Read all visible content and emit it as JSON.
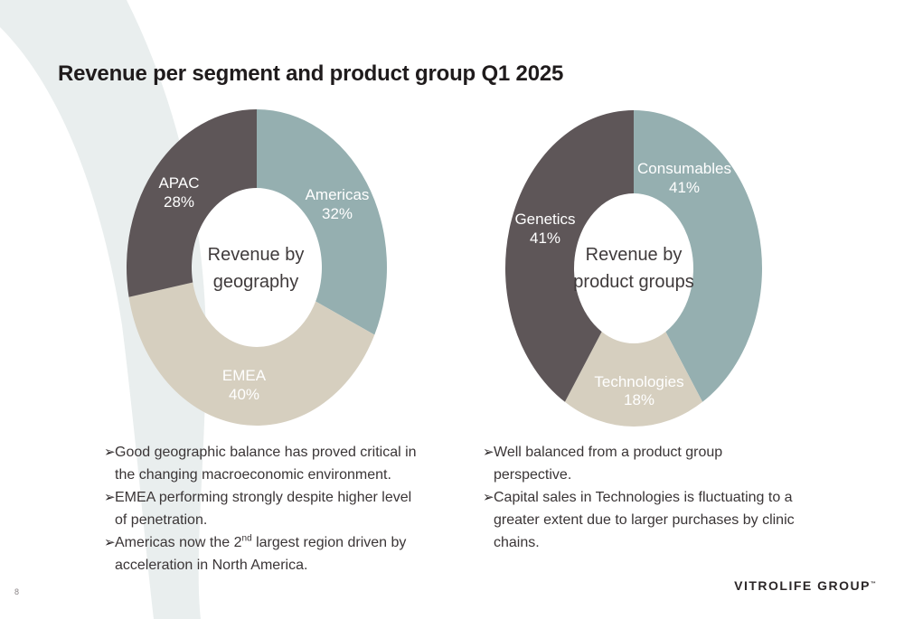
{
  "page": {
    "title": "Revenue per segment and product group Q1 2025",
    "page_number": "8",
    "brand": "VITROLIFE GROUP",
    "brand_mark": "™"
  },
  "colors": {
    "slate": "#95afb0",
    "beige": "#d6cfbf",
    "charcoal": "#5e5658",
    "label_text": "#ffffff",
    "swoosh": "#e9eeee"
  },
  "charts": {
    "geography": {
      "center_line1": "Revenue by",
      "center_line2": "geography",
      "labels": [
        {
          "name": "Americas",
          "pct": "32%"
        },
        {
          "name": "EMEA",
          "pct": "40%"
        },
        {
          "name": "APAC",
          "pct": "28%"
        }
      ]
    },
    "products": {
      "center_line1": "Revenue by",
      "center_line2": "product groups",
      "labels": [
        {
          "name": "Consumables",
          "pct": "41%"
        },
        {
          "name": "Technologies",
          "pct": "18%"
        },
        {
          "name": "Genetics",
          "pct": "41%"
        }
      ]
    }
  },
  "chart_data": [
    {
      "type": "pie",
      "categories": [
        "Americas",
        "EMEA",
        "APAC"
      ],
      "values": [
        32,
        40,
        28
      ],
      "colors": [
        "#95afb0",
        "#d6cfbf",
        "#5e5658"
      ]
    },
    {
      "type": "pie",
      "categories": [
        "Consumables",
        "Technologies",
        "Genetics"
      ],
      "values": [
        41,
        18,
        41
      ],
      "colors": [
        "#95afb0",
        "#d6cfbf",
        "#5e5658"
      ]
    }
  ],
  "left_bullets": {
    "b1": "Good geographic balance has proved critical in the changing macroeconomic environment.",
    "b2": "EMEA performing strongly despite higher level of penetration.",
    "b3_pre": "Americas now the 2",
    "b3_sup": "nd",
    "b3_post": " largest region driven by acceleration in North America."
  },
  "right_bullets": {
    "b1": "Well balanced from a product group perspective.",
    "b2": "Capital sales in Technologies is fluctuating to a greater extent due to larger purchases by clinic chains."
  },
  "bullet_glyph": "➢"
}
